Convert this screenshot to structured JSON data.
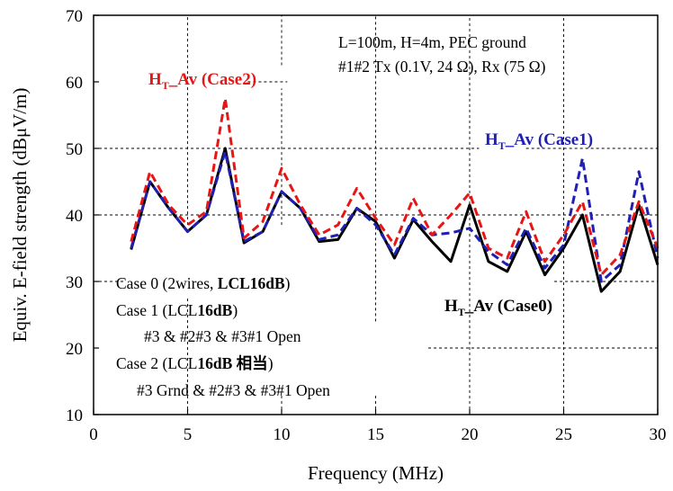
{
  "chart_data": {
    "type": "line",
    "xlabel": "Frequency (MHz)",
    "ylabel": "Equiv. E-field strength (dBμV/m)",
    "xlim": [
      0,
      30
    ],
    "ylim": [
      10,
      70
    ],
    "xticks": [
      "0",
      "5",
      "10",
      "15",
      "20",
      "25",
      "30"
    ],
    "yticks": [
      "10",
      "20",
      "30",
      "40",
      "50",
      "60",
      "70"
    ],
    "grid": "dashed",
    "x": [
      2,
      3,
      4,
      5,
      6,
      7,
      8,
      9,
      10,
      11,
      12,
      13,
      14,
      15,
      16,
      17,
      18,
      19,
      20,
      21,
      22,
      23,
      24,
      25,
      26,
      27,
      28,
      29,
      30
    ],
    "series": [
      {
        "name": "HT_Av (Case0)",
        "color": "#000000",
        "dash": "solid",
        "values": [
          34.8,
          45.0,
          41.0,
          37.5,
          40.0,
          50.0,
          35.8,
          37.5,
          43.5,
          41.0,
          36.0,
          36.3,
          41.0,
          39.0,
          33.5,
          39.3,
          36.0,
          33.0,
          41.5,
          33.0,
          31.5,
          37.5,
          31.0,
          35.0,
          40.0,
          28.5,
          31.5,
          41.5,
          32.5
        ]
      },
      {
        "name": "HT_Av (Case1)",
        "color": "#1f1fb4",
        "dash": "dashed",
        "values": [
          35.0,
          45.0,
          41.0,
          37.5,
          40.0,
          49.5,
          36.0,
          37.5,
          43.5,
          41.0,
          36.3,
          37.0,
          41.0,
          38.5,
          34.0,
          39.5,
          37.0,
          37.3,
          38.0,
          34.5,
          32.5,
          38.0,
          32.0,
          35.5,
          48.5,
          30.0,
          32.5,
          46.5,
          33.5
        ]
      },
      {
        "name": "HT_Av (Case2)",
        "color": "#e81515",
        "dash": "dashed",
        "values": [
          36.0,
          46.5,
          41.5,
          38.5,
          40.5,
          57.5,
          36.5,
          39.0,
          47.0,
          41.5,
          37.0,
          38.5,
          44.0,
          39.5,
          35.5,
          42.5,
          37.0,
          40.0,
          43.3,
          35.0,
          33.5,
          40.5,
          33.0,
          37.0,
          42.0,
          31.0,
          34.0,
          42.0,
          35.0
        ]
      }
    ]
  },
  "annotations": {
    "top_right_line1": "L=100m, H=4m,  PEC ground",
    "top_right_line2": "#1#2 Tx (0.1V, 24 Ω), Rx (75 Ω)",
    "case2_label_main": "H",
    "case2_label_sub": "T",
    "case2_label_rest": "_Av (Case2)",
    "case1_label_main": "H",
    "case1_label_sub": "T",
    "case1_label_rest": "_Av (Case1)",
    "case0_label_main": "H",
    "case0_label_sub": "T",
    "case0_label_rest": "_Av (Case0)",
    "legend_case0_a": "Case 0 (2wires, ",
    "legend_case0_b": "LCL16dB",
    "legend_case0_c": ")",
    "legend_case1_a": "Case 1 (LCL",
    "legend_case1_b": "16dB",
    "legend_case1_c": ")",
    "legend_case1_detail": "#3 & #2#3 & #3#1 Open",
    "legend_case2_a": "Case 2 (LCL",
    "legend_case2_b": "16dB 相当",
    "legend_case2_c": ")",
    "legend_case2_detail": "#3 Grnd & #2#3 & #3#1 Open"
  }
}
